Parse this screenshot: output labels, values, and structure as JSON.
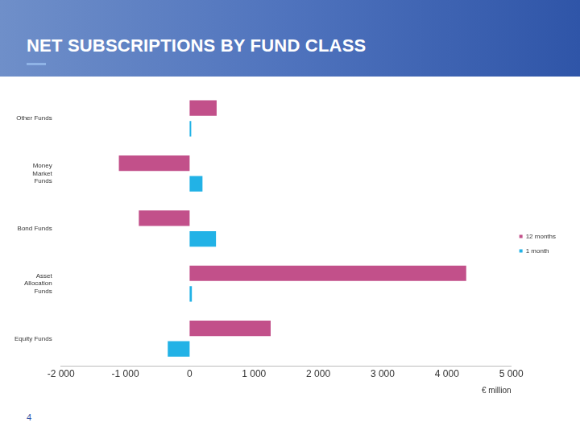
{
  "chart_data": {
    "type": "bar",
    "title": "NET SUBSCRIPTIONS BY FUND CLASS",
    "orientation": "horizontal",
    "categories": [
      "Other Funds",
      "Money Market Funds",
      "Bond Funds",
      "Asset Allocation Funds",
      "Equity Funds"
    ],
    "series": [
      {
        "name": "12 months",
        "color": "#c2508a",
        "values": [
          420,
          -1100,
          -790,
          4300,
          1260
        ]
      },
      {
        "name": "1 month",
        "color": "#22b2e6",
        "values": [
          25,
          200,
          410,
          35,
          -340
        ]
      }
    ],
    "xlabel": "€ million",
    "xlim": [
      -2000,
      5000
    ],
    "xticks": [
      {
        "value": -2000,
        "label": "-2 000"
      },
      {
        "value": -1000,
        "label": "-1 000"
      },
      0,
      {
        "value": 1000,
        "label": "1 000"
      },
      {
        "value": 2000,
        "label": "2 000"
      },
      {
        "value": 3000,
        "label": "3 000"
      },
      {
        "value": 4000,
        "label": "4 000"
      },
      {
        "value": 5000,
        "label": "5 000"
      }
    ],
    "grid": false,
    "legend": "right"
  },
  "page_number": "4"
}
